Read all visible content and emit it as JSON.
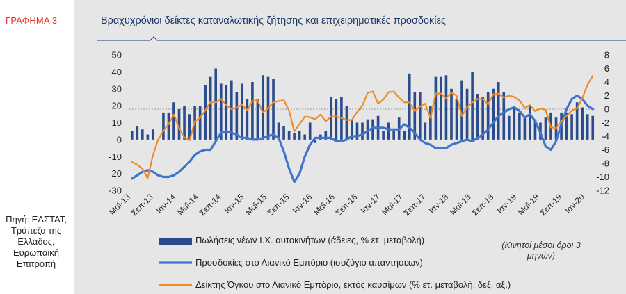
{
  "figure_label": "ΓΡΑΦΗΜΑ 3",
  "title": "Βραχυχρόνιοι δείκτες καταναλωτικής ζήτησης και επιχειρηματικές προσδοκίες",
  "source": "Πηγή: ΕΛΣΤΑΤ, Τράπεζα της Ελλάδος, Ευρωπαϊκή Επιτροπή",
  "note": "(Κινητοί μέσοι όροι 3 μηνών)",
  "colors": {
    "bars": "#2b4c8c",
    "expectations": "#3f74cc",
    "retail": "#f08a24",
    "title": "#1b3a6b",
    "accent": "#e8352a"
  },
  "chart_data": {
    "type": "bar+line",
    "title": "Βραχυχρόνιοι δείκτες καταναλωτικής ζήτησης και επιχειρηματικές προσδοκίες",
    "x_tick_labels": [
      "Μαΐ-13",
      "Σεπ-13",
      "Ιαν-14",
      "Μαΐ-14",
      "Σεπ-14",
      "Ιαν-15",
      "Μαΐ-15",
      "Σεπ-15",
      "Ιαν-16",
      "Μαΐ-16",
      "Σεπ-16",
      "Ιαν-17",
      "Μαΐ-17",
      "Σεπ-17",
      "Ιαν-18",
      "Μαΐ-18",
      "Σεπ-18",
      "Ιαν-19",
      "Μαΐ-19",
      "Σεπ-19",
      "Ιαν-20"
    ],
    "left_axis": {
      "ylim": [
        -30,
        50
      ],
      "ticks": [
        50,
        40,
        30,
        20,
        10,
        0,
        -10,
        -20,
        -30
      ]
    },
    "right_axis": {
      "ylim": [
        -12,
        8
      ],
      "ticks": [
        8,
        6,
        4,
        2,
        0,
        -2,
        -4,
        -6,
        -8,
        -10,
        -12
      ],
      "reference_line": 0
    },
    "series": [
      {
        "name": "Πωλήσεις νέων Ι.Χ. αυτοκινήτων (άδειες, % ετ. μεταβολή)",
        "kind": "bar",
        "axis": "left",
        "values": [
          5,
          8,
          6,
          3,
          6,
          0,
          16,
          16,
          22,
          18,
          20,
          15,
          20,
          20,
          32,
          37,
          42,
          33,
          32,
          35,
          28,
          33,
          24,
          34,
          24,
          38,
          37,
          36,
          10,
          8,
          5,
          4,
          5,
          3,
          10,
          -2,
          3,
          5,
          25,
          24,
          25,
          20,
          12,
          10,
          10,
          12,
          12,
          14,
          5,
          10,
          5,
          13,
          5,
          39,
          28,
          28,
          10,
          20,
          37,
          37,
          38,
          30,
          24,
          35,
          30,
          40,
          27,
          25,
          28,
          30,
          34,
          28,
          14,
          20,
          16,
          13,
          20,
          12,
          10,
          13,
          16,
          13,
          16,
          16,
          15,
          22,
          19,
          15,
          14
        ]
      },
      {
        "name": "Προσδοκίες στο Λιανικό Εμπόριο (ισοζύγιο απαντήσεων)",
        "kind": "line",
        "axis": "left",
        "values": [
          -23,
          -21,
          -19,
          -18,
          -19,
          -21,
          -22,
          -22,
          -21,
          -19,
          -16,
          -13,
          -9,
          -7,
          -6,
          -6,
          -1,
          4,
          5,
          4,
          3,
          1,
          1,
          0,
          0,
          1,
          2,
          3,
          1,
          -7,
          -17,
          -25,
          -20,
          -10,
          -3,
          1,
          1,
          1,
          1,
          -1,
          -1,
          0,
          2,
          2,
          3,
          5,
          7,
          7,
          7,
          6,
          6,
          6,
          9,
          7,
          4,
          0,
          -2,
          -3,
          -5,
          -5,
          -5,
          -3,
          -2,
          -1,
          0,
          -1,
          1,
          3,
          6,
          10,
          14,
          16,
          18,
          19,
          17,
          13,
          15,
          11,
          4,
          -4,
          -6,
          -1,
          9,
          18,
          24,
          26,
          24,
          20,
          18
        ]
      },
      {
        "name": "Δείκτης Όγκου στο Λιανικό Εμπόριο, εκτός καυσίμων (% ετ. μεταβολή, δεξ. αξ.)",
        "kind": "line",
        "axis": "right",
        "values": [
          -7.8,
          -8.2,
          -8.8,
          -10.2,
          -6.8,
          -4.5,
          -3.2,
          -2.2,
          -0.8,
          -2.8,
          -4.2,
          -4.6,
          -1.8,
          -1.3,
          -0.2,
          1.1,
          1.0,
          1.5,
          0.6,
          0.0,
          0.2,
          0.7,
          -0.2,
          1.2,
          1.3,
          -0.5,
          0.1,
          1.0,
          1.2,
          1.3,
          -0.2,
          -3.3,
          -2.2,
          -1.1,
          -1.2,
          -1.5,
          -0.8,
          -1.8,
          -1.1,
          -1.1,
          -1.3,
          -1.6,
          -1.6,
          -0.4,
          0.5,
          2.4,
          2.6,
          0.8,
          1.4,
          2.5,
          2.6,
          1.7,
          1.0,
          1.0,
          -0.3,
          0.4,
          0.8,
          -1.3,
          2.3,
          2.3,
          1.6,
          2.4,
          2.0,
          -1.0,
          0.3,
          1.0,
          1.5,
          1.5,
          0.7,
          2.2,
          2.3,
          1.7,
          2.0,
          1.8,
          1.3,
          0.2,
          0.6,
          -0.3,
          0.1,
          -0.1,
          -2.7,
          -2.8,
          -1.8,
          -1.0,
          -0.2,
          0.1,
          1.6,
          3.6,
          4.9
        ]
      }
    ]
  }
}
